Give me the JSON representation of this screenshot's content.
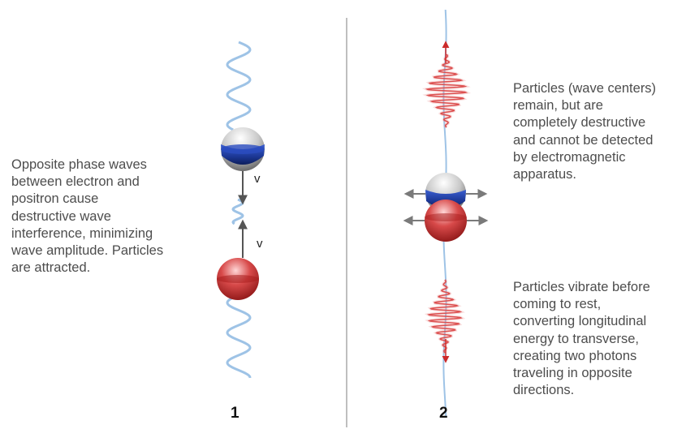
{
  "left_text": {
    "lines": [
      "Opposite phase waves",
      "between electron and",
      "positron cause",
      "destructive wave",
      "interference, minimizing",
      "wave amplitude. Particles",
      "are attracted."
    ]
  },
  "right_text_top": {
    "lines": [
      "Particles (wave centers)",
      "remain, but are",
      "completely destructive",
      "and cannot be detected",
      "by electromagnetic",
      "apparatus."
    ]
  },
  "right_text_bottom": {
    "lines": [
      "Particles vibrate before",
      "coming to rest,",
      "converting longitudinal",
      "energy to transverse,",
      "creating two photons",
      "traveling in opposite",
      "directions."
    ]
  },
  "panel_labels": {
    "left": "1",
    "right": "2"
  },
  "velocity_labels": {
    "upper": "v",
    "lower": "v"
  },
  "colors": {
    "wave": "#9ec3e6",
    "electron": "#1e3fa8",
    "positron": "#c42a2a",
    "photon": "#d94040",
    "divider": "#aaaaaa",
    "arrow": "#555555"
  }
}
